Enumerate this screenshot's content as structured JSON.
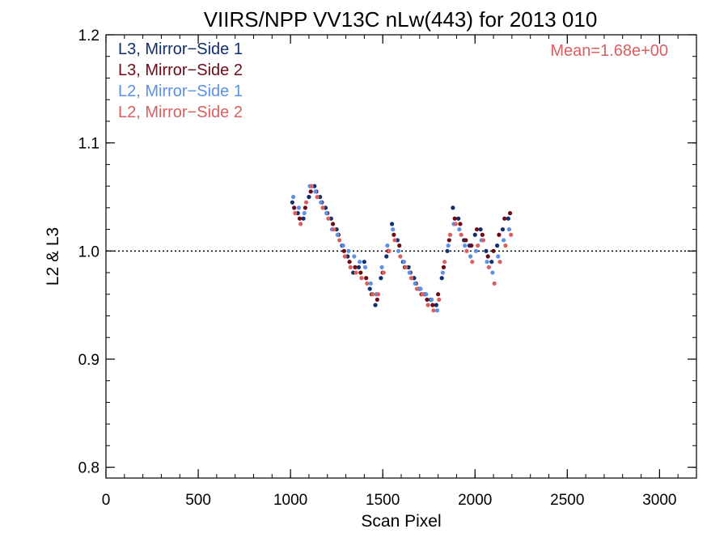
{
  "chart_data": {
    "type": "scatter",
    "title": "VIIRS/NPP VV13C nLw(443) for 2013 010",
    "xlabel": "Scan Pixel",
    "ylabel": "L2 & L3",
    "xlim": [
      0,
      3200
    ],
    "ylim": [
      0.79,
      1.2
    ],
    "xticks": [
      0,
      500,
      1000,
      1500,
      2000,
      2500,
      3000
    ],
    "xtick_labels": [
      "0",
      "500",
      "1000",
      "1500",
      "2000",
      "2500",
      "3000"
    ],
    "yticks": [
      0.8,
      0.9,
      1.0,
      1.1,
      1.2
    ],
    "ytick_labels": [
      "0.8",
      "0.9",
      "1.0",
      "1.1",
      "1.2"
    ],
    "reference_line": 1.0,
    "annotation": "Mean=1.68e+00",
    "annotation_color": "#d9605f",
    "legend_position": "top-left",
    "series": [
      {
        "name": "L3, Mirror−Side 1",
        "color": "#0f2f6e",
        "x": [
          1010,
          1040,
          1070,
          1100,
          1130,
          1160,
          1190,
          1220,
          1250,
          1280,
          1310,
          1340,
          1370,
          1400,
          1430,
          1460,
          1490,
          1520,
          1550,
          1580,
          1610,
          1640,
          1670,
          1700,
          1730,
          1760,
          1790,
          1820,
          1850,
          1880,
          1910,
          1940,
          1970,
          2000,
          2030,
          2060,
          2090,
          2120,
          2150,
          2180
        ],
        "y": [
          1.045,
          1.035,
          1.03,
          1.05,
          1.06,
          1.05,
          1.04,
          1.03,
          1.02,
          1.005,
          0.995,
          0.98,
          0.985,
          0.99,
          0.965,
          0.95,
          0.975,
          0.995,
          1.025,
          1.01,
          0.99,
          0.985,
          0.975,
          0.965,
          0.96,
          0.955,
          0.95,
          0.975,
          1.0,
          1.04,
          1.03,
          1.01,
          1.005,
          1.015,
          1.02,
          1.0,
          0.99,
          1.005,
          1.02,
          1.03
        ]
      },
      {
        "name": "L3, Mirror−Side 2",
        "color": "#6e0b14",
        "x": [
          1020,
          1050,
          1080,
          1110,
          1140,
          1170,
          1200,
          1230,
          1260,
          1290,
          1320,
          1350,
          1380,
          1410,
          1440,
          1470,
          1500,
          1530,
          1560,
          1590,
          1620,
          1650,
          1680,
          1710,
          1740,
          1770,
          1800,
          1830,
          1860,
          1890,
          1920,
          1950,
          1980,
          2010,
          2040,
          2070,
          2100,
          2130,
          2160,
          2190
        ],
        "y": [
          1.04,
          1.03,
          1.04,
          1.055,
          1.055,
          1.045,
          1.035,
          1.025,
          1.015,
          1.0,
          0.99,
          0.985,
          0.98,
          0.975,
          0.96,
          0.955,
          0.98,
          1.0,
          1.015,
          1.005,
          0.985,
          0.98,
          0.97,
          0.96,
          0.955,
          0.95,
          0.96,
          0.985,
          1.01,
          1.03,
          1.025,
          1.01,
          1.005,
          1.02,
          1.015,
          0.995,
          1.0,
          1.015,
          1.03,
          1.035
        ]
      },
      {
        "name": "L2, Mirror−Side 1",
        "color": "#5a91e6",
        "x": [
          1015,
          1045,
          1075,
          1105,
          1135,
          1165,
          1195,
          1225,
          1255,
          1285,
          1315,
          1345,
          1375,
          1405,
          1435,
          1465,
          1495,
          1525,
          1555,
          1585,
          1615,
          1645,
          1675,
          1705,
          1735,
          1765,
          1795,
          1825,
          1855,
          1885,
          1915,
          1945,
          1975,
          2005,
          2035,
          2065,
          2095,
          2125,
          2155,
          2185
        ],
        "y": [
          1.05,
          1.04,
          1.035,
          1.06,
          1.055,
          1.045,
          1.035,
          1.02,
          1.015,
          1.005,
          1.0,
          0.995,
          0.99,
          0.985,
          0.97,
          0.96,
          0.985,
          1.005,
          1.02,
          1.0,
          0.99,
          0.98,
          0.97,
          0.965,
          0.96,
          0.955,
          0.945,
          0.98,
          1.005,
          1.025,
          1.02,
          1.005,
          0.995,
          1.0,
          1.01,
          0.99,
          0.98,
          0.995,
          1.01,
          1.02
        ]
      },
      {
        "name": "L2, Mirror−Side 2",
        "color": "#d9605f",
        "x": [
          1025,
          1055,
          1085,
          1115,
          1145,
          1175,
          1205,
          1235,
          1265,
          1295,
          1325,
          1355,
          1385,
          1415,
          1445,
          1475,
          1505,
          1535,
          1565,
          1595,
          1625,
          1655,
          1685,
          1715,
          1745,
          1775,
          1805,
          1835,
          1865,
          1895,
          1925,
          1955,
          1985,
          2015,
          2045,
          2075,
          2105,
          2135,
          2165,
          2195
        ],
        "y": [
          1.035,
          1.025,
          1.045,
          1.06,
          1.05,
          1.04,
          1.03,
          1.02,
          1.01,
          0.995,
          0.985,
          0.98,
          0.975,
          0.97,
          0.96,
          0.96,
          0.98,
          1.0,
          1.01,
          0.995,
          0.985,
          0.975,
          0.965,
          0.96,
          0.95,
          0.945,
          0.955,
          0.99,
          1.015,
          1.025,
          1.015,
          1.0,
          0.99,
          1.005,
          1.01,
          0.985,
          0.97,
          0.99,
          1.005,
          1.015
        ]
      }
    ]
  }
}
